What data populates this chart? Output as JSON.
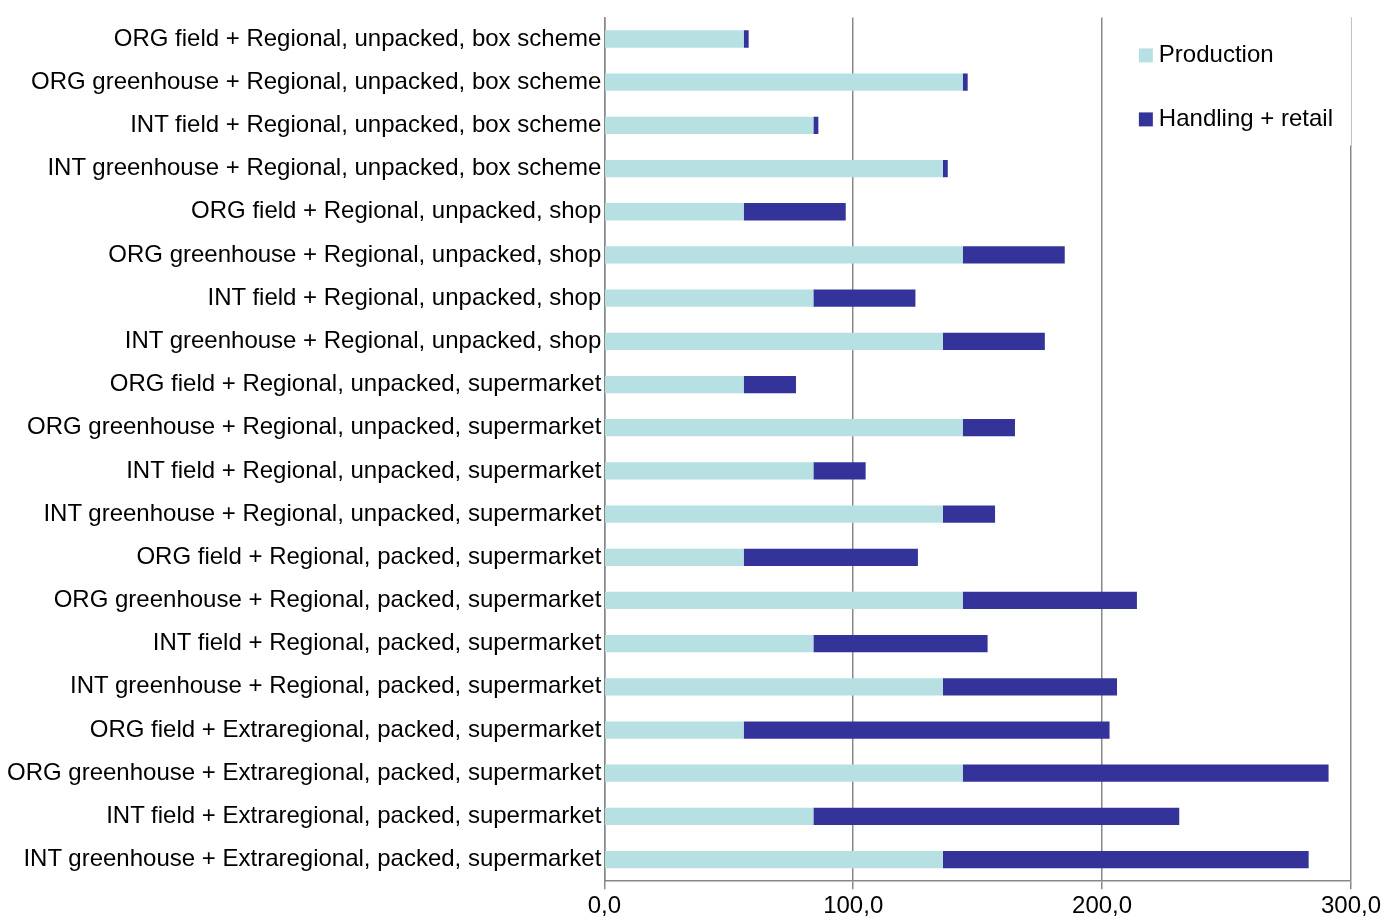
{
  "chart_data": {
    "type": "bar",
    "orientation": "horizontal",
    "stacked": true,
    "categories": [
      "ORG field + Regional, unpacked, box scheme",
      "ORG greenhouse + Regional, unpacked, box scheme",
      "INT field + Regional, unpacked, box scheme",
      "INT greenhouse + Regional, unpacked, box scheme",
      "ORG field + Regional, unpacked, shop",
      "ORG greenhouse + Regional, unpacked, shop",
      "INT field + Regional, unpacked, shop",
      "INT greenhouse + Regional, unpacked, shop",
      "ORG field + Regional, unpacked, supermarket",
      "ORG greenhouse + Regional, unpacked, supermarket",
      "INT field + Regional, unpacked, supermarket",
      "INT greenhouse + Regional, unpacked, supermarket",
      "ORG field + Regional, packed, supermarket",
      "ORG greenhouse + Regional, packed, supermarket",
      "INT field + Regional, packed, supermarket",
      "INT greenhouse + Regional, packed, supermarket",
      "ORG field + Extraregional, packed, supermarket",
      "ORG greenhouse + Extraregional, packed, supermarket",
      "INT field + Extraregional, packed, supermarket",
      "INT greenhouse + Extraregional, packed, supermarket"
    ],
    "series": [
      {
        "name": "Production",
        "color": "#b7e0e2",
        "values": [
          56,
          144,
          84,
          136,
          56,
          144,
          84,
          136,
          56,
          144,
          84,
          136,
          56,
          144,
          84,
          136,
          56,
          144,
          84,
          136
        ]
      },
      {
        "name": "Handling + retail",
        "color": "#333399",
        "values": [
          2,
          2,
          2,
          2,
          41,
          41,
          41,
          41,
          21,
          21,
          21,
          21,
          70,
          70,
          70,
          70,
          147,
          147,
          147,
          147
        ]
      }
    ],
    "xlim": [
      0,
      300
    ],
    "xticks": [
      {
        "value": 0,
        "label": "0,0"
      },
      {
        "value": 100,
        "label": "100,0"
      },
      {
        "value": 200,
        "label": "200,0"
      },
      {
        "value": 300,
        "label": "300,0"
      }
    ],
    "grid": "x",
    "legend": "top right"
  }
}
